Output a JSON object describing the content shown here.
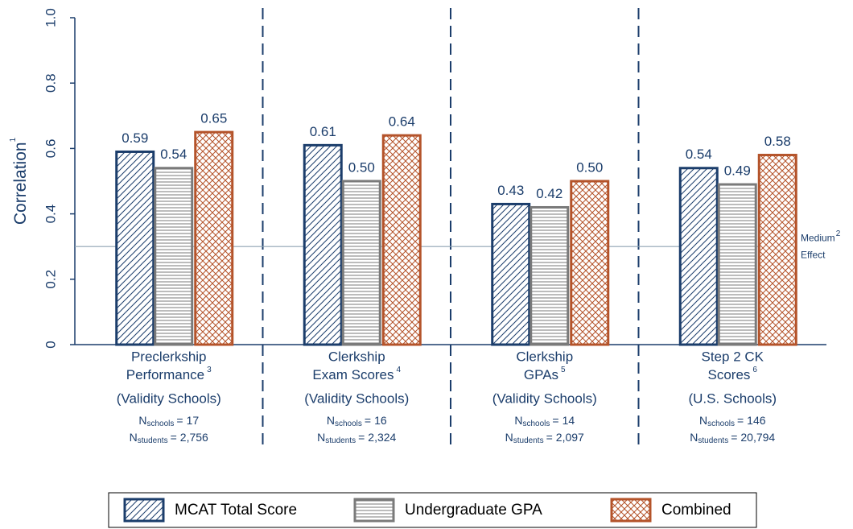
{
  "chart_data": {
    "type": "bar",
    "ylabel": "Correlation",
    "ylabel_note": "1",
    "ylim": [
      0,
      1
    ],
    "yticks": [
      0,
      0.2,
      0.4,
      0.6,
      0.8,
      {
        "value": 1,
        "label": "1.0"
      }
    ],
    "categories": [
      [
        "Preclerkship",
        "Performance"
      ],
      [
        "Clerkship",
        "Exam Scores"
      ],
      [
        "Clerkship",
        "GPAs"
      ],
      [
        "Step 2 CK",
        "Scores"
      ]
    ],
    "category_notes": [
      "3",
      "4",
      "5",
      "6"
    ],
    "category_subtitles": [
      "(Validity Schools)",
      "(Validity Schools)",
      "(Validity Schools)",
      "(U.S. Schools)"
    ],
    "n_label": "N",
    "schools_label": "schools",
    "students_label": "students",
    "equals": "=",
    "n_schools": [
      17,
      16,
      14,
      146
    ],
    "n_students": [
      2756,
      2324,
      2097,
      20794
    ],
    "n_students_labels": [
      "2,756",
      "2,324",
      "2,097",
      "20,794"
    ],
    "series": [
      {
        "name": "MCAT Total Score",
        "color": "#1b3d6b",
        "pattern": "diagonal",
        "values": [
          0.59,
          0.61,
          0.43,
          0.54
        ],
        "value_labels": [
          "0.59",
          "0.61",
          "0.43",
          "0.54"
        ]
      },
      {
        "name": "Undergraduate GPA",
        "color": "#7a7a7a",
        "pattern": "horizontal",
        "values": [
          0.54,
          0.5,
          0.42,
          0.49
        ],
        "value_labels": [
          "0.54",
          "0.50",
          "0.42",
          "0.49"
        ]
      },
      {
        "name": "Combined",
        "color": "#b4532a",
        "pattern": "crosshatch",
        "values": [
          0.65,
          0.64,
          0.5,
          0.58
        ],
        "value_labels": [
          "0.65",
          "0.64",
          "0.50",
          "0.58"
        ]
      }
    ],
    "reference_line": {
      "value": 0.3,
      "label": [
        "Medium",
        "Effect"
      ],
      "note": "2",
      "color": "#8fa3b3"
    }
  }
}
